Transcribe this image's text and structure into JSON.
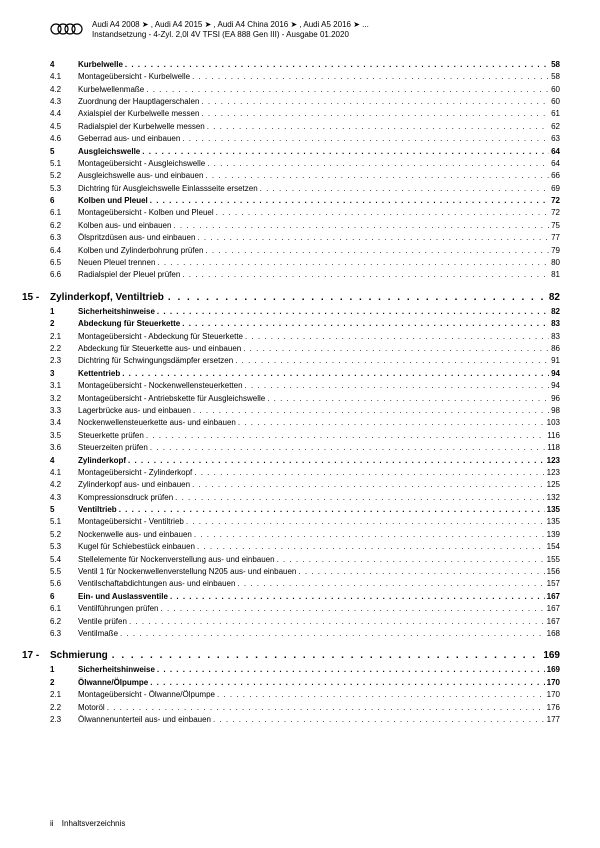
{
  "header": {
    "line1": "Audi A4 2008 ➤ , Audi A4 2015 ➤ , Audi A4 China 2016 ➤ , Audi A5 2016 ➤ ...",
    "line2": "Instandsetzung - 4-Zyl. 2,0l 4V TFSI (EA 888 Gen III) - Ausgabe 01.2020"
  },
  "sections": [
    {
      "type": "item",
      "num": "4",
      "label": "Kurbelwelle",
      "page": "58",
      "bold": true
    },
    {
      "type": "item",
      "num": "4.1",
      "label": "Montageübersicht - Kurbelwelle",
      "page": "58"
    },
    {
      "type": "item",
      "num": "4.2",
      "label": "Kurbelwellenmaße",
      "page": "60"
    },
    {
      "type": "item",
      "num": "4.3",
      "label": "Zuordnung der Hauptlagerschalen",
      "page": "60"
    },
    {
      "type": "item",
      "num": "4.4",
      "label": "Axialspiel der Kurbelwelle messen",
      "page": "61"
    },
    {
      "type": "item",
      "num": "4.5",
      "label": "Radialspiel der Kurbelwelle messen",
      "page": "62"
    },
    {
      "type": "item",
      "num": "4.6",
      "label": "Geberrad aus- und einbauen",
      "page": "63"
    },
    {
      "type": "item",
      "num": "5",
      "label": "Ausgleichswelle",
      "page": "64",
      "bold": true
    },
    {
      "type": "item",
      "num": "5.1",
      "label": "Montageübersicht - Ausgleichswelle",
      "page": "64"
    },
    {
      "type": "item",
      "num": "5.2",
      "label": "Ausgleichswelle aus- und einbauen",
      "page": "66"
    },
    {
      "type": "item",
      "num": "5.3",
      "label": "Dichtring für Ausgleichswelle Einlassseite ersetzen",
      "page": "69"
    },
    {
      "type": "item",
      "num": "6",
      "label": "Kolben und Pleuel",
      "page": "72",
      "bold": true
    },
    {
      "type": "item",
      "num": "6.1",
      "label": "Montageübersicht - Kolben und Pleuel",
      "page": "72"
    },
    {
      "type": "item",
      "num": "6.2",
      "label": "Kolben aus- und einbauen",
      "page": "75"
    },
    {
      "type": "item",
      "num": "6.3",
      "label": "Ölspritzdüsen aus- und einbauen",
      "page": "77"
    },
    {
      "type": "item",
      "num": "6.4",
      "label": "Kolben und Zylinderbohrung prüfen",
      "page": "79"
    },
    {
      "type": "item",
      "num": "6.5",
      "label": "Neuen Pleuel trennen",
      "page": "80"
    },
    {
      "type": "item",
      "num": "6.6",
      "label": "Radialspiel der Pleuel prüfen",
      "page": "81"
    },
    {
      "type": "chapter",
      "num": "15 -",
      "label": "Zylinderkopf, Ventiltrieb",
      "page": "82"
    },
    {
      "type": "item",
      "num": "1",
      "label": "Sicherheitshinweise",
      "page": "82",
      "bold": true
    },
    {
      "type": "item",
      "num": "2",
      "label": "Abdeckung für Steuerkette",
      "page": "83",
      "bold": true
    },
    {
      "type": "item",
      "num": "2.1",
      "label": "Montageübersicht - Abdeckung für Steuerkette",
      "page": "83"
    },
    {
      "type": "item",
      "num": "2.2",
      "label": "Abdeckung für Steuerkette aus- und einbauen",
      "page": "86"
    },
    {
      "type": "item",
      "num": "2.3",
      "label": "Dichtring für Schwingungsdämpfer ersetzen",
      "page": "91"
    },
    {
      "type": "item",
      "num": "3",
      "label": "Kettentrieb",
      "page": "94",
      "bold": true
    },
    {
      "type": "item",
      "num": "3.1",
      "label": "Montageübersicht - Nockenwellensteuerketten",
      "page": "94"
    },
    {
      "type": "item",
      "num": "3.2",
      "label": "Montageübersicht - Antriebskette für Ausgleichswelle",
      "page": "96"
    },
    {
      "type": "item",
      "num": "3.3",
      "label": "Lagerbrücke aus- und einbauen",
      "page": "98"
    },
    {
      "type": "item",
      "num": "3.4",
      "label": "Nockenwellensteuerkette aus- und einbauen",
      "page": "103"
    },
    {
      "type": "item",
      "num": "3.5",
      "label": "Steuerkette prüfen",
      "page": "116"
    },
    {
      "type": "item",
      "num": "3.6",
      "label": "Steuerzeiten prüfen",
      "page": "118"
    },
    {
      "type": "item",
      "num": "4",
      "label": "Zylinderkopf",
      "page": "123",
      "bold": true
    },
    {
      "type": "item",
      "num": "4.1",
      "label": "Montageübersicht - Zylinderkopf",
      "page": "123"
    },
    {
      "type": "item",
      "num": "4.2",
      "label": "Zylinderkopf aus- und einbauen",
      "page": "125"
    },
    {
      "type": "item",
      "num": "4.3",
      "label": "Kompressionsdruck prüfen",
      "page": "132"
    },
    {
      "type": "item",
      "num": "5",
      "label": "Ventiltrieb",
      "page": "135",
      "bold": true
    },
    {
      "type": "item",
      "num": "5.1",
      "label": "Montageübersicht - Ventiltrieb",
      "page": "135"
    },
    {
      "type": "item",
      "num": "5.2",
      "label": "Nockenwelle aus- und einbauen",
      "page": "139"
    },
    {
      "type": "item",
      "num": "5.3",
      "label": "Kugel für Schiebestück einbauen",
      "page": "154"
    },
    {
      "type": "item",
      "num": "5.4",
      "label": "Stellelemente für Nockenverstellung aus- und einbauen",
      "page": "155"
    },
    {
      "type": "item",
      "num": "5.5",
      "label": "Ventil 1 für Nockenwellenverstellung N205 aus- und einbauen",
      "page": "156"
    },
    {
      "type": "item",
      "num": "5.6",
      "label": "Ventilschaftabdichtungen aus- und einbauen",
      "page": "157"
    },
    {
      "type": "item",
      "num": "6",
      "label": "Ein- und Auslassventile",
      "page": "167",
      "bold": true
    },
    {
      "type": "item",
      "num": "6.1",
      "label": "Ventilführungen prüfen",
      "page": "167"
    },
    {
      "type": "item",
      "num": "6.2",
      "label": "Ventile prüfen",
      "page": "167"
    },
    {
      "type": "item",
      "num": "6.3",
      "label": "Ventilmaße",
      "page": "168"
    },
    {
      "type": "chapter",
      "num": "17 -",
      "label": "Schmierung",
      "page": "169"
    },
    {
      "type": "item",
      "num": "1",
      "label": "Sicherheitshinweise",
      "page": "169",
      "bold": true
    },
    {
      "type": "item",
      "num": "2",
      "label": "Ölwanne/Ölpumpe",
      "page": "170",
      "bold": true
    },
    {
      "type": "item",
      "num": "2.1",
      "label": "Montageübersicht - Ölwanne/Ölpumpe",
      "page": "170"
    },
    {
      "type": "item",
      "num": "2.2",
      "label": "Motoröl",
      "page": "176"
    },
    {
      "type": "item",
      "num": "2.3",
      "label": "Ölwannenunterteil aus- und einbauen",
      "page": "177"
    }
  ],
  "footer": {
    "pagenum": "ii",
    "label": "Inhaltsverzeichnis"
  }
}
